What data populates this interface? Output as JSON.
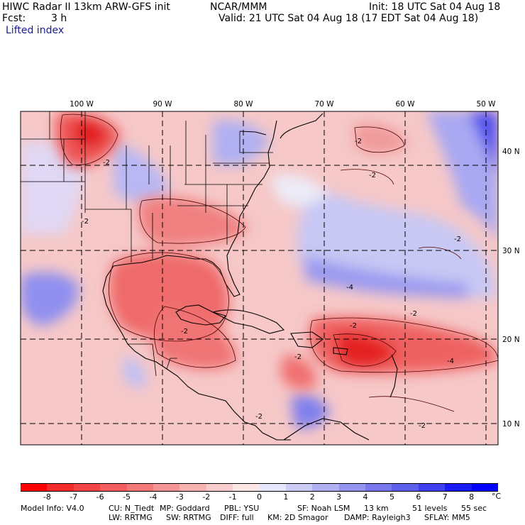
{
  "header": {
    "title": "HIWC Radar II 13km ARW-GFS init",
    "org": "NCAR/MMM",
    "init": "Init: 18 UTC Sat 04 Aug 18",
    "fcst_label": "Fcst:",
    "fcst_value": "3 h",
    "valid": "Valid: 21 UTC Sat 04 Aug 18 (17 EDT Sat 04 Aug 18)",
    "field": "Lifted index"
  },
  "map": {
    "lon_labels": [
      "100 W",
      "90 W",
      "80 W",
      "70 W",
      "60 W",
      "50 W"
    ],
    "lat_labels": [
      "40 N",
      "30 N",
      "20 N",
      "10 N"
    ],
    "contour_labels": [
      "-2",
      "-2",
      "-2",
      "-2",
      "-2",
      "-4",
      "-2",
      "-2",
      "-2",
      "-2",
      "-4",
      "-2",
      "-2"
    ]
  },
  "colorbar": {
    "ticks": [
      "-8",
      "-7",
      "-6",
      "-5",
      "-4",
      "-3",
      "-2",
      "-1",
      "0",
      "1",
      "2",
      "3",
      "4",
      "5",
      "6",
      "7",
      "8"
    ],
    "unit": "°C",
    "colors": [
      "#ff0000",
      "#f22a2a",
      "#f34545",
      "#f45e5e",
      "#f47878",
      "#f59494",
      "#f6b1b1",
      "#f8cccc",
      "#fbe5e5",
      "#e6e6fb",
      "#ccccf6",
      "#b0b0f2",
      "#9494ef",
      "#7878ec",
      "#5e5eec",
      "#4040ee",
      "#1a1af4",
      "#0000ff"
    ]
  },
  "footer": {
    "line1": [
      "Model Info: V4.0",
      "CU: N_Tiedt",
      "MP: Goddard",
      "PBL: YSU",
      "SF: Noah LSM",
      "13 km",
      "51 levels",
      "55 sec"
    ],
    "line2": [
      "LW: RRTMG",
      "SW: RRTMG",
      "DIFF: full",
      "KM: 2D Smagor",
      "DAMP: Rayleigh3",
      "SFLAY: MM5"
    ]
  },
  "palette": {
    "ocean_pink": "#f6c8c8",
    "warm_red": "#ef5a5a",
    "deep_red": "#e81e1e",
    "cool_blue": "#8e8ef0",
    "pale_blue": "#d2d2f6"
  }
}
